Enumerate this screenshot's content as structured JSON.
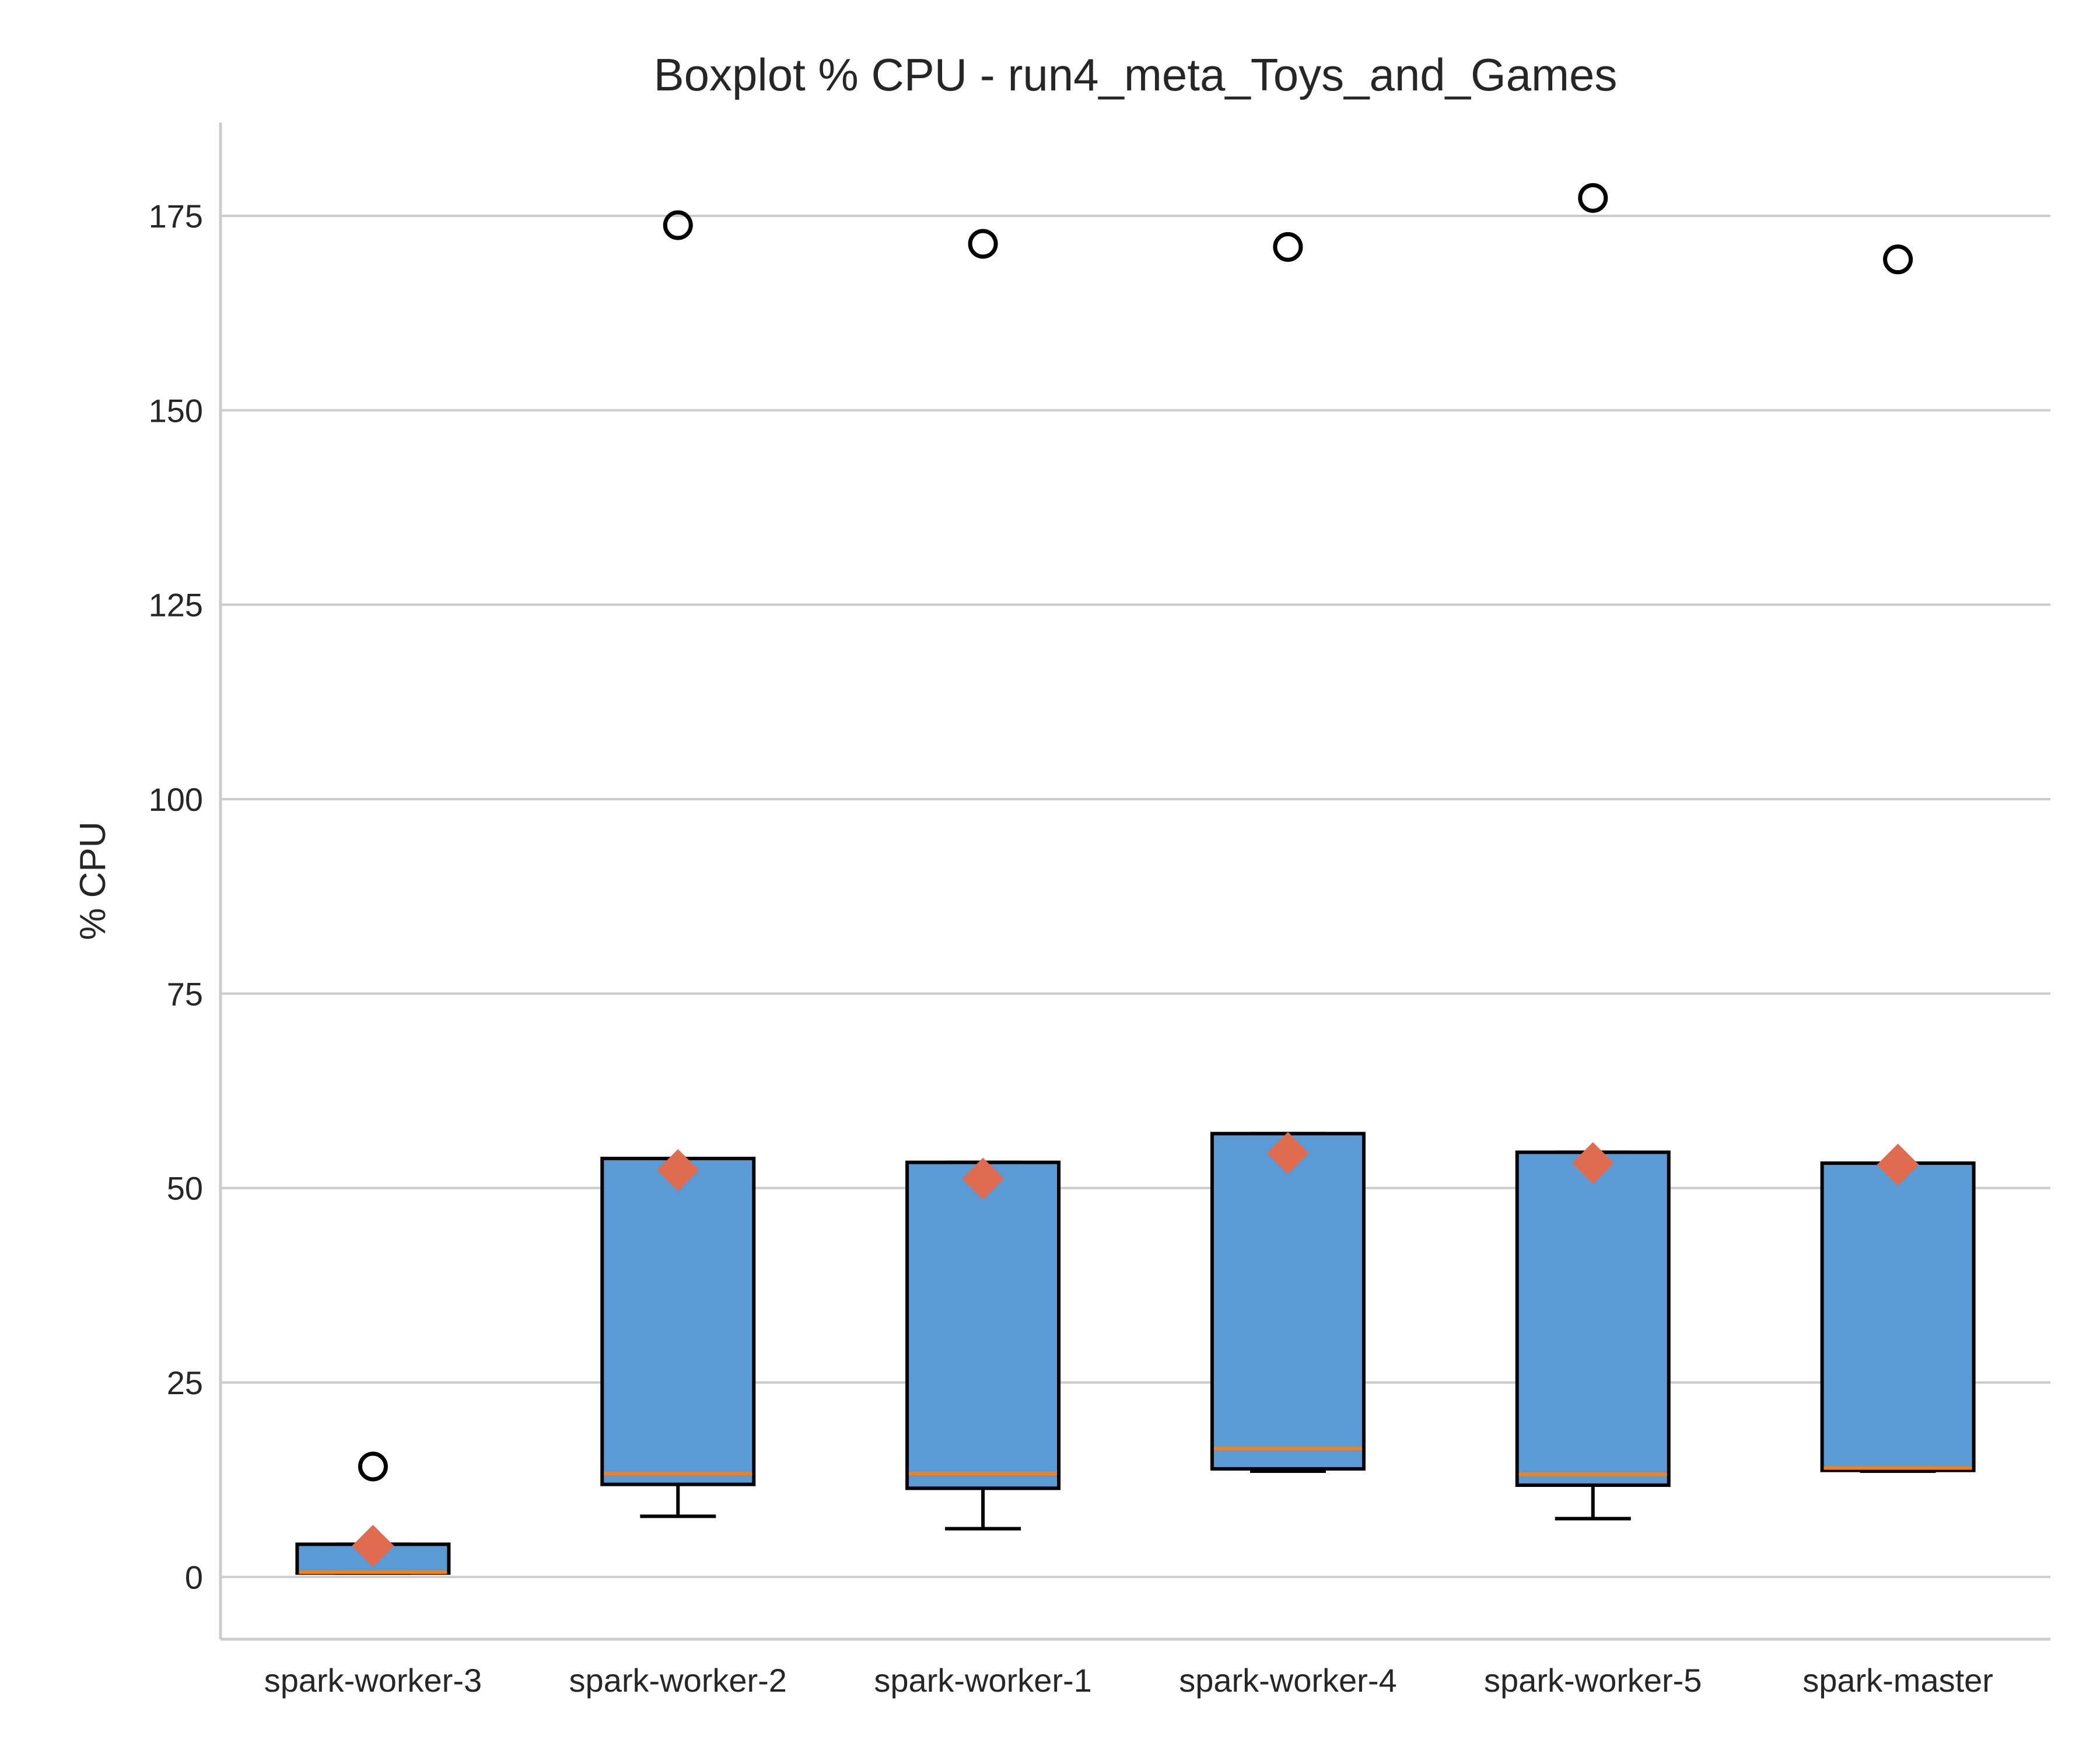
{
  "chart_data": {
    "type": "boxplot",
    "title": "Boxplot % CPU - run4_meta_Toys_and_Games",
    "ylabel": "% CPU",
    "xlabel": "",
    "ylim": [
      -8,
      187
    ],
    "yticks": [
      0,
      25,
      50,
      75,
      100,
      125,
      150,
      175
    ],
    "grid": "horizontal",
    "colors": {
      "box_fill": "#5b9bd5",
      "box_edge": "#000000",
      "median": "#ff7f0e",
      "mean_marker": "#e06c4f",
      "grid": "#cccccc",
      "spine": "#cccccc"
    },
    "categories": [
      "spark-worker-3",
      "spark-worker-2",
      "spark-worker-1",
      "spark-worker-4",
      "spark-worker-5",
      "spark-master"
    ],
    "boxes": [
      {
        "name": "spark-worker-3",
        "whisker_low": 0.5,
        "q1": 0.5,
        "median": 0.6,
        "q3": 4.2,
        "whisker_high": 4.2,
        "mean": 4.0,
        "outliers": [
          14.2
        ]
      },
      {
        "name": "spark-worker-2",
        "whisker_low": 7.8,
        "q1": 11.9,
        "median": 13.3,
        "q3": 53.8,
        "whisker_high": 53.8,
        "mean": 52.3,
        "outliers": [
          173.8
        ]
      },
      {
        "name": "spark-worker-1",
        "whisker_low": 6.2,
        "q1": 11.4,
        "median": 13.3,
        "q3": 53.3,
        "whisker_high": 53.3,
        "mean": 51.2,
        "outliers": [
          171.4
        ]
      },
      {
        "name": "spark-worker-4",
        "whisker_low": 13.6,
        "q1": 13.9,
        "median": 16.5,
        "q3": 57.0,
        "whisker_high": 57.0,
        "mean": 54.5,
        "outliers": [
          171.0
        ]
      },
      {
        "name": "spark-worker-5",
        "whisker_low": 7.5,
        "q1": 11.8,
        "median": 13.2,
        "q3": 54.6,
        "whisker_high": 54.6,
        "mean": 53.2,
        "outliers": [
          177.3
        ]
      },
      {
        "name": "spark-master",
        "whisker_low": 13.6,
        "q1": 13.7,
        "median": 14.0,
        "q3": 53.2,
        "whisker_high": 53.2,
        "mean": 53.0,
        "outliers": [
          169.4
        ]
      }
    ]
  }
}
